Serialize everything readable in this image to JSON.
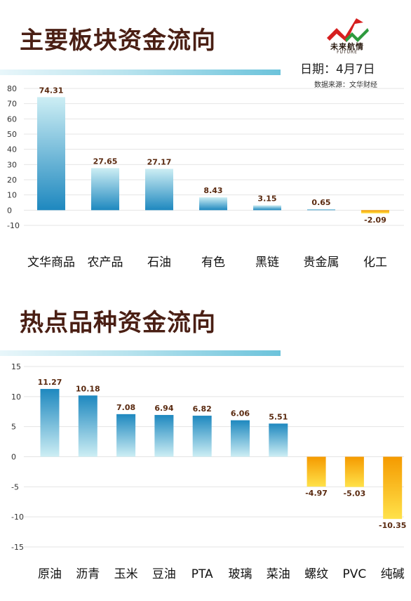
{
  "header": {
    "title1": "主要板块资金流向",
    "title2": "热点品种资金流向",
    "date": "日期：4月7日",
    "source": "数据来源：文华财经",
    "logo_text": "未来航情",
    "logo_sub": "FUTURE"
  },
  "colors": {
    "title": "#4a1f14",
    "positive_top": "#cdeef4",
    "positive_bottom": "#1e88bf",
    "negative_top": "#ffe24a",
    "negative_bottom": "#f59a00",
    "band": "#6cc3db"
  },
  "chart_data": [
    {
      "type": "bar",
      "title": "主要板块资金流向",
      "categories": [
        "文华商品",
        "农产品",
        "石油",
        "有色",
        "黑链",
        "贵金属",
        "化工"
      ],
      "values": [
        74.31,
        27.65,
        27.17,
        8.43,
        3.15,
        0.65,
        -2.09
      ],
      "value_labels": [
        "74.31",
        "27.65",
        "27.17",
        "8.43",
        "3.15",
        "0.65",
        "-2.09"
      ],
      "yticks": [
        80,
        70,
        60,
        50,
        40,
        30,
        20,
        10,
        0,
        -10
      ],
      "ylim": [
        -10,
        80
      ],
      "grid": true
    },
    {
      "type": "bar",
      "title": "热点品种资金流向",
      "categories": [
        "原油",
        "沥青",
        "玉米",
        "豆油",
        "PTA",
        "玻璃",
        "菜油",
        "螺纹",
        "PVC",
        "纯碱"
      ],
      "values": [
        11.27,
        10.18,
        7.08,
        6.94,
        6.82,
        6.06,
        5.51,
        -4.97,
        -5.03,
        -10.35
      ],
      "value_labels": [
        "11.27",
        "10.18",
        "7.08",
        "6.94",
        "6.82",
        "6.06",
        "5.51",
        "-4.97",
        "-5.03",
        "-10.35"
      ],
      "yticks": [
        15,
        10,
        5,
        0,
        -5,
        -10,
        -15
      ],
      "ylim": [
        -15,
        15
      ],
      "grid": true
    }
  ]
}
